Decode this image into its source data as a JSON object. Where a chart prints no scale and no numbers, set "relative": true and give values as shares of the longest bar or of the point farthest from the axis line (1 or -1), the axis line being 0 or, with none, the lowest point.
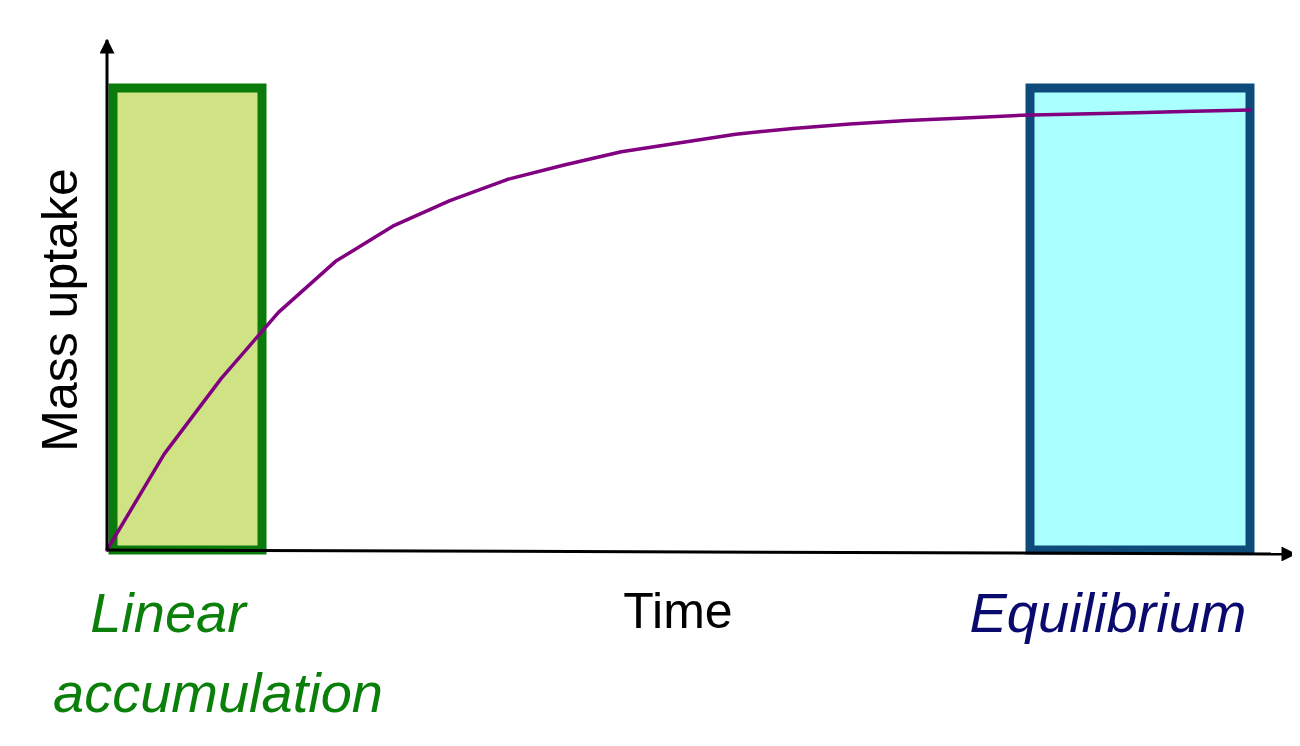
{
  "chart_data": {
    "type": "line",
    "xlabel": "Time",
    "ylabel": "Mass uptake",
    "relative": true,
    "categories": [
      null,
      null,
      null,
      null,
      null,
      null,
      null,
      null,
      null,
      null,
      null,
      null,
      null,
      null,
      null,
      null,
      null,
      null,
      null,
      null,
      null
    ],
    "series": [
      {
        "color": "#800080",
        "values": [
          0,
          0.218,
          0.39,
          0.54,
          0.656,
          0.736,
          0.794,
          0.842,
          0.875,
          0.905,
          0.925,
          0.945,
          0.958,
          0.968,
          0.976,
          0.982,
          0.988,
          0.991,
          0.994,
          0.997,
          1
        ]
      }
    ],
    "annotations": [
      "Linear accumulation",
      "Equilibrium"
    ]
  }
}
